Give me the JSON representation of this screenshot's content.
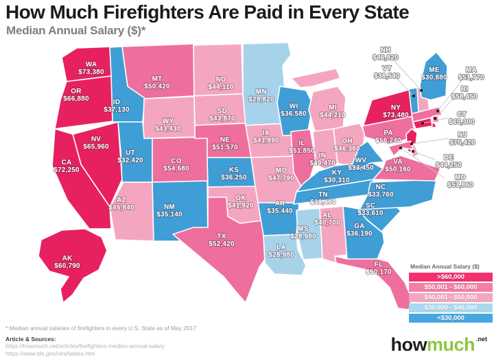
{
  "header": {
    "title": "How Much Firefighters Are Paid in Every State",
    "subtitle": "Median Annual Salary ($)*"
  },
  "legend": {
    "title": "Median Annual Salary ($)",
    "rows": [
      {
        "label": ">$60,000",
        "color": "#f2316f"
      },
      {
        "label": "$50,001 - $60,000",
        "color": "#f27fa6"
      },
      {
        "label": "$40,001 - $50,000",
        "color": "#f3a6c1"
      },
      {
        "label": "$30,000 - $40,000",
        "color": "#a9d8f0"
      },
      {
        "label": "<$30,000",
        "color": "#47a7e0"
      }
    ]
  },
  "footer": {
    "note": "* Median annual salaries of firefighters in every U.S. State as of May 2017",
    "sources_heading": "Article & Sources:",
    "sources": [
      "https://howmuch.net/articles/firefighters-median-annual-salary",
      "https://www.bls.gov/oes/tables.htm"
    ]
  },
  "logo": {
    "part1": "how",
    "part2": "much",
    "suffix": ".net"
  },
  "chart_data": {
    "type": "choropleth",
    "title": "How Much Firefighters Are Paid in Every State",
    "unit": "USD, median annual salary, May 2017",
    "palette": {
      "crimson": "#e7215f",
      "pink": "#ee6f9d",
      "lightpink": "#f4a6c1",
      "medblue": "#3f9ed6",
      "lightblue": "#a7d3ea"
    },
    "legend_buckets": [
      ">$60,000",
      "$50,001 - $60,000",
      "$40,001 - $50,000",
      "$30,000 - $40,000",
      "<$30,000"
    ],
    "states": [
      {
        "abbr": "WA",
        "salary": 73380,
        "label": "$73,380",
        "fill": "crimson"
      },
      {
        "abbr": "OR",
        "salary": 66880,
        "label": "$66,880",
        "fill": "crimson"
      },
      {
        "abbr": "CA",
        "salary": 72250,
        "label": "$72,250",
        "fill": "crimson"
      },
      {
        "abbr": "NV",
        "salary": 65960,
        "label": "$65,960",
        "fill": "crimson"
      },
      {
        "abbr": "AK",
        "salary": 60790,
        "label": "$60,790",
        "fill": "crimson"
      },
      {
        "abbr": "NY",
        "salary": 73480,
        "label": "$73,480",
        "fill": "crimson"
      },
      {
        "abbr": "NJ",
        "salary": 75420,
        "label": "$75,420",
        "fill": "crimson"
      },
      {
        "abbr": "CT",
        "salary": 65300,
        "label": "$65,300",
        "fill": "crimson"
      },
      {
        "abbr": "MT",
        "salary": 50420,
        "label": "$50,420",
        "fill": "pink"
      },
      {
        "abbr": "CO",
        "salary": 54680,
        "label": "$54,680",
        "fill": "pink"
      },
      {
        "abbr": "NE",
        "salary": 51570,
        "label": "$51,570",
        "fill": "pink"
      },
      {
        "abbr": "TX",
        "salary": 52420,
        "label": "$52,420",
        "fill": "pink"
      },
      {
        "abbr": "IL",
        "salary": 51850,
        "label": "$51,850",
        "fill": "pink"
      },
      {
        "abbr": "PA",
        "salary": 56240,
        "label": "$56,240",
        "fill": "pink"
      },
      {
        "abbr": "VA",
        "salary": 50160,
        "label": "$50,160",
        "fill": "pink"
      },
      {
        "abbr": "FL",
        "salary": 50170,
        "label": "$50,170",
        "fill": "pink"
      },
      {
        "abbr": "MA",
        "salary": 51770,
        "label": "$51,770",
        "fill": "pink"
      },
      {
        "abbr": "RI",
        "salary": 58450,
        "label": "$58,450",
        "fill": "pink"
      },
      {
        "abbr": "MD",
        "salary": 57860,
        "label": "$57,860",
        "fill": "pink"
      },
      {
        "abbr": "ND",
        "salary": 44110,
        "label": "$44,110",
        "fill": "lightpink"
      },
      {
        "abbr": "SD",
        "salary": 43870,
        "label": "$43,870",
        "fill": "lightpink"
      },
      {
        "abbr": "WY",
        "salary": 43430,
        "label": "$43,430",
        "fill": "lightpink"
      },
      {
        "abbr": "AZ",
        "salary": 45840,
        "label": "$45,840",
        "fill": "lightpink"
      },
      {
        "abbr": "OK",
        "salary": 41920,
        "label": "$41,920",
        "fill": "lightpink"
      },
      {
        "abbr": "IA",
        "salary": 41890,
        "label": "$41,890",
        "fill": "lightpink"
      },
      {
        "abbr": "MO",
        "salary": 47790,
        "label": "$47,790",
        "fill": "lightpink"
      },
      {
        "abbr": "MI",
        "salary": 44210,
        "label": "$44,210",
        "fill": "lightpink"
      },
      {
        "abbr": "IN",
        "salary": 49470,
        "label": "$49,470",
        "fill": "lightpink"
      },
      {
        "abbr": "OH",
        "salary": 46360,
        "label": "$46,360",
        "fill": "lightpink"
      },
      {
        "abbr": "AL",
        "salary": 40700,
        "label": "$40,700",
        "fill": "lightpink"
      },
      {
        "abbr": "NH",
        "salary": 46820,
        "label": "$46,820",
        "fill": "lightpink"
      },
      {
        "abbr": "DE",
        "salary": 44250,
        "label": "$44,250",
        "fill": "lightpink"
      },
      {
        "abbr": "ID",
        "salary": 37130,
        "label": "$37,130",
        "fill": "medblue"
      },
      {
        "abbr": "UT",
        "salary": 32420,
        "label": "$32,420",
        "fill": "medblue"
      },
      {
        "abbr": "NM",
        "salary": 35140,
        "label": "$35,140",
        "fill": "medblue"
      },
      {
        "abbr": "KS",
        "salary": 36250,
        "label": "$36,250",
        "fill": "medblue"
      },
      {
        "abbr": "WI",
        "salary": 36580,
        "label": "$36,580",
        "fill": "medblue"
      },
      {
        "abbr": "AR",
        "salary": 35440,
        "label": "$35,440",
        "fill": "medblue"
      },
      {
        "abbr": "TN",
        "salary": 38460,
        "label": "$38,460",
        "fill": "medblue"
      },
      {
        "abbr": "KY",
        "salary": 30310,
        "label": "$30,310",
        "fill": "medblue"
      },
      {
        "abbr": "NC",
        "salary": 33760,
        "label": "$33,760",
        "fill": "medblue"
      },
      {
        "abbr": "SC",
        "salary": 33610,
        "label": "$33,610",
        "fill": "medblue"
      },
      {
        "abbr": "GA",
        "salary": 36190,
        "label": "$36,190",
        "fill": "medblue"
      },
      {
        "abbr": "WV",
        "salary": 33450,
        "label": "$33,450",
        "fill": "medblue"
      },
      {
        "abbr": "ME",
        "salary": 30880,
        "label": "$30,880",
        "fill": "medblue"
      },
      {
        "abbr": "VT",
        "salary": 38540,
        "label": "$38,540",
        "fill": "medblue"
      },
      {
        "abbr": "MN",
        "salary": 29820,
        "label": "$29,820",
        "fill": "lightblue"
      },
      {
        "abbr": "LA",
        "salary": 28980,
        "label": "$28,980",
        "fill": "lightblue"
      },
      {
        "abbr": "MS",
        "salary": 28980,
        "label": "$28,980",
        "fill": "lightblue"
      }
    ]
  }
}
